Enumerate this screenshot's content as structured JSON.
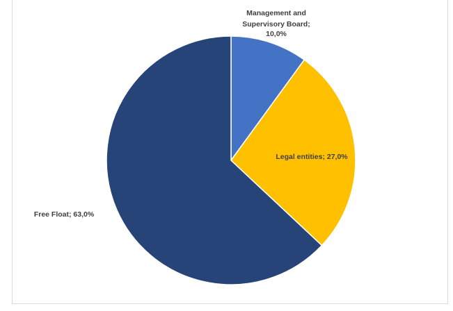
{
  "chart_data": {
    "type": "pie",
    "title": "",
    "legend": "none",
    "slices": [
      {
        "label": "Management and Supervisory Board",
        "value": 10.0,
        "value_text": "10,0%",
        "color": "#4472c4"
      },
      {
        "label": "Legal entities",
        "value": 27.0,
        "value_text": "27,0%",
        "color": "#ffc000"
      },
      {
        "label": "Free Float",
        "value": 63.0,
        "value_text": "63,0%",
        "color": "#264478"
      }
    ],
    "data_labels": [
      {
        "line1": "Management and",
        "line2": "Supervisory Board;",
        "line3": "10,0%"
      },
      {
        "text": "Legal entities; 27,0%"
      },
      {
        "text": "Free Float; 63,0%"
      }
    ]
  }
}
